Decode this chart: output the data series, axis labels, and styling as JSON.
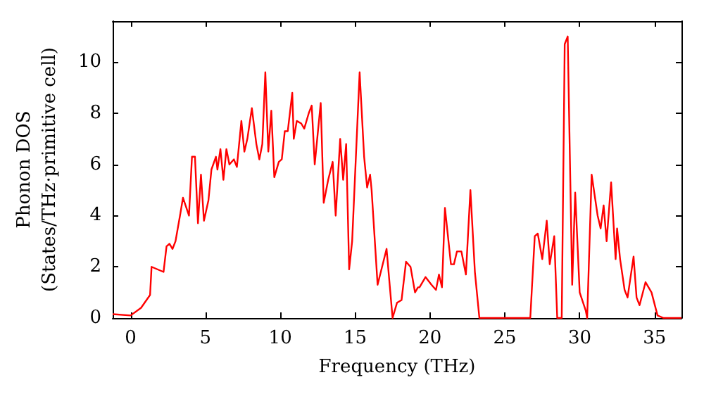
{
  "chart_data": {
    "type": "line",
    "xlabel": "Frequency (THz)",
    "ylabel": "Phonon DOS\n(States/THz·primitive cell)",
    "xlim": [
      -1.2,
      36.8
    ],
    "xticks": [
      0,
      5,
      10,
      15,
      20,
      25,
      30,
      35
    ],
    "ylim": [
      0,
      11.6
    ],
    "yticks": [
      0,
      2,
      4,
      6,
      8,
      10
    ],
    "marker": "none",
    "line_style": "solid",
    "series": [
      {
        "color": "#ff0000",
        "x": [
          -1.2,
          0,
          0.7,
          1.3,
          1.4,
          2.2,
          2.4,
          2.6,
          2.8,
          3.0,
          3.3,
          3.5,
          3.9,
          4.1,
          4.3,
          4.5,
          4.7,
          4.9,
          5.2,
          5.4,
          5.7,
          5.8,
          6.0,
          6.2,
          6.4,
          6.6,
          6.9,
          7.1,
          7.4,
          7.6,
          7.8,
          8.1,
          8.4,
          8.6,
          8.8,
          9.0,
          9.2,
          9.4,
          9.6,
          9.9,
          10.1,
          10.3,
          10.5,
          10.8,
          10.9,
          11.1,
          11.4,
          11.6,
          11.9,
          12.1,
          12.3,
          12.7,
          12.9,
          13.2,
          13.5,
          13.7,
          14.0,
          14.2,
          14.4,
          14.6,
          14.8,
          15.3,
          15.6,
          15.8,
          16.0,
          16.1,
          16.5,
          17.1,
          17.5,
          17.8,
          18.1,
          18.4,
          18.7,
          19.0,
          19.2,
          19.3,
          19.7,
          20.1,
          20.4,
          20.6,
          20.8,
          21.0,
          21.4,
          21.6,
          21.8,
          22.1,
          22.4,
          22.7,
          23.0,
          23.3,
          26.7,
          27.0,
          27.2,
          27.5,
          27.8,
          28.0,
          28.3,
          28.5,
          28.8,
          29.0,
          29.2,
          29.5,
          29.7,
          30.0,
          30.4,
          30.5,
          30.8,
          31.2,
          31.4,
          31.6,
          31.8,
          32.1,
          32.4,
          32.5,
          32.7,
          33.0,
          33.2,
          33.6,
          33.8,
          34.0,
          34.4,
          34.8,
          35.2,
          35.6,
          36.8
        ],
        "values": [
          0.15,
          0.1,
          0.4,
          0.9,
          2.0,
          1.8,
          2.8,
          2.9,
          2.7,
          3.0,
          4.0,
          4.7,
          4.0,
          6.3,
          6.3,
          3.7,
          5.6,
          3.8,
          4.6,
          5.8,
          6.3,
          5.8,
          6.6,
          5.4,
          6.6,
          6.0,
          6.2,
          5.9,
          7.7,
          6.5,
          7.0,
          8.2,
          6.8,
          6.2,
          6.8,
          9.6,
          6.5,
          8.1,
          5.5,
          6.1,
          6.2,
          7.3,
          7.3,
          8.8,
          7.0,
          7.7,
          7.6,
          7.4,
          8.0,
          8.3,
          6.0,
          8.4,
          4.5,
          5.4,
          6.1,
          4.0,
          7.0,
          5.4,
          6.8,
          1.9,
          3.0,
          9.6,
          6.3,
          5.1,
          5.6,
          5.0,
          1.3,
          2.7,
          0,
          0.6,
          0.7,
          2.2,
          2.0,
          1.0,
          1.2,
          1.2,
          1.6,
          1.3,
          1.1,
          1.7,
          1.2,
          4.3,
          2.1,
          2.1,
          2.6,
          2.6,
          1.7,
          5.0,
          1.8,
          0,
          0,
          3.2,
          3.3,
          2.3,
          3.8,
          2.1,
          3.2,
          0,
          0,
          10.7,
          11.0,
          1.3,
          4.9,
          1.0,
          0.3,
          0,
          5.6,
          4.0,
          3.5,
          4.4,
          3.0,
          5.3,
          2.3,
          3.5,
          2.3,
          1.1,
          0.8,
          2.4,
          0.8,
          0.5,
          1.4,
          1.0,
          0.1,
          0,
          0
        ]
      }
    ]
  }
}
